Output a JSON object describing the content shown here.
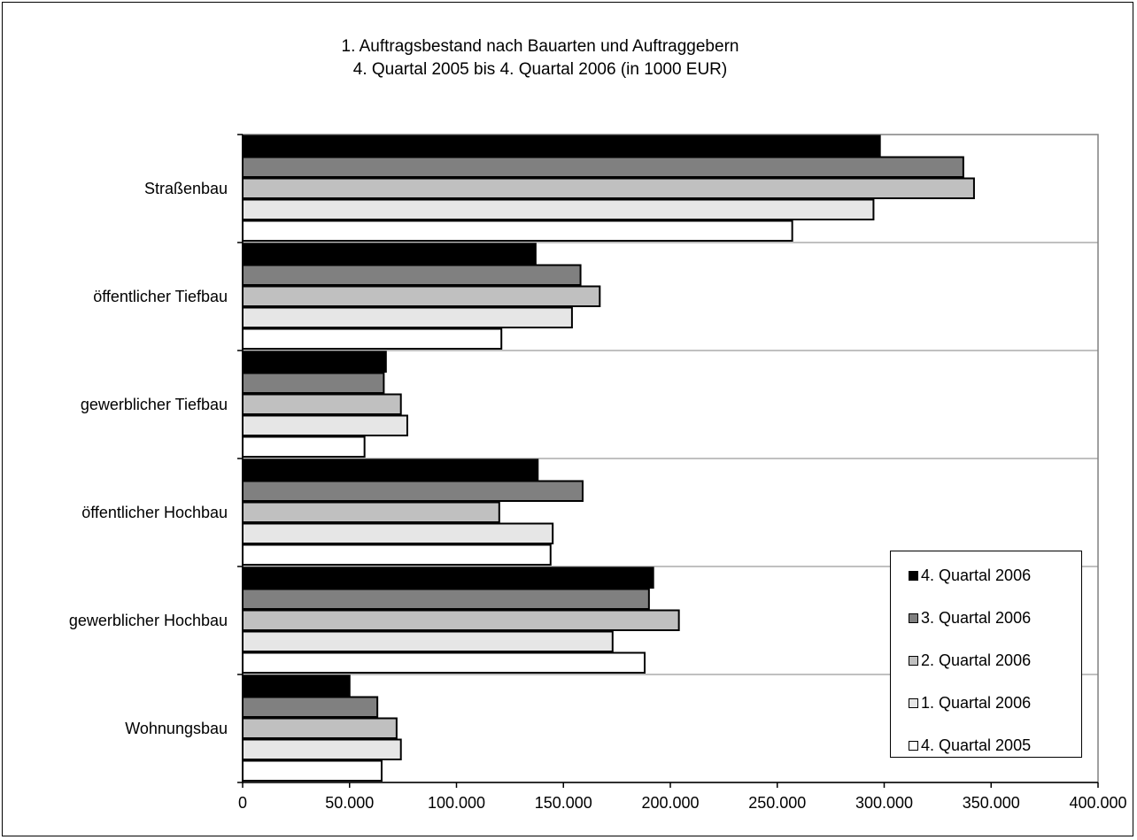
{
  "chart_data": {
    "type": "bar",
    "orientation": "horizontal",
    "title": [
      "1. Auftragsbestand nach Bauarten und Auftraggebern",
      "4. Quartal 2005 bis 4. Quartal 2006 (in 1000 EUR)"
    ],
    "categories": [
      "Straßenbau",
      "öffentlicher Tiefbau",
      "gewerblicher Tiefbau",
      "öffentlicher Hochbau",
      "gewerblicher Hochbau",
      "Wohnungsbau"
    ],
    "series": [
      {
        "name": "4. Quartal 2006",
        "color": "#000000",
        "values": [
          298000,
          137000,
          67000,
          138000,
          192000,
          50000
        ]
      },
      {
        "name": "3. Quartal 2006",
        "color": "#808080",
        "values": [
          337000,
          158000,
          66000,
          159000,
          190000,
          63000
        ]
      },
      {
        "name": "2. Quartal 2006",
        "color": "#c0c0c0",
        "values": [
          342000,
          167000,
          74000,
          120000,
          204000,
          72000
        ]
      },
      {
        "name": "1. Quartal 2006",
        "color": "#e6e6e6",
        "values": [
          295000,
          154000,
          77000,
          145000,
          173000,
          74000
        ]
      },
      {
        "name": "4. Quartal 2005",
        "color": "#ffffff",
        "values": [
          257000,
          121000,
          57000,
          144000,
          188000,
          65000
        ]
      }
    ],
    "xlim": [
      0,
      400000
    ],
    "xticks": [
      0,
      50000,
      100000,
      150000,
      200000,
      250000,
      300000,
      350000,
      400000
    ],
    "xtick_labels": [
      "0",
      "50.000",
      "100.000",
      "150.000",
      "200.000",
      "250.000",
      "300.000",
      "350.000",
      "400.000"
    ],
    "xlabel": "",
    "ylabel": "",
    "grid": "horizontal category separators",
    "legend_position": "bottom-right"
  }
}
